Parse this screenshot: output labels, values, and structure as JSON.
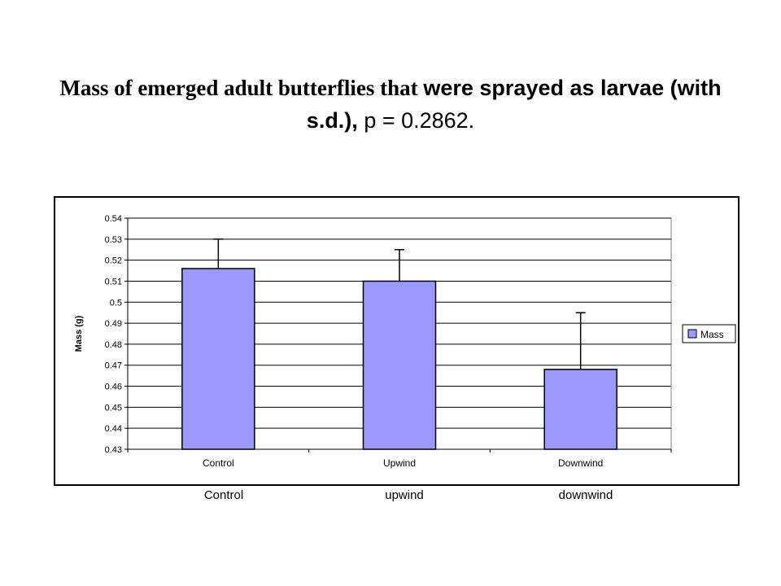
{
  "title": {
    "part1": "Mass of emerged adult butterflies that ",
    "part2": "were sprayed as larvae (with s.d.),",
    "part3": " p = 0.2862."
  },
  "below_labels": [
    "Control",
    "upwind",
    "downwind"
  ],
  "colors": {
    "bar_fill": "#9999ff",
    "bar_stroke": "#000000",
    "grid": "#000000",
    "plot_bg": "#ffffff"
  },
  "chart_data": {
    "type": "bar",
    "categories": [
      "Control",
      "Upwind",
      "Downwind"
    ],
    "series": [
      {
        "name": "Mass",
        "values": [
          0.516,
          0.51,
          0.468
        ],
        "error": [
          0.014,
          0.015,
          0.027
        ]
      }
    ],
    "title": "",
    "xlabel": "",
    "ylabel": "Mass (g)",
    "ylim": [
      0.43,
      0.54
    ],
    "yticks": [
      "0.43",
      "0.44",
      "0.45",
      "0.46",
      "0.47",
      "0.48",
      "0.49",
      "0.5",
      "0.51",
      "0.52",
      "0.53",
      "0.54"
    ],
    "grid": true,
    "legend": "right"
  }
}
